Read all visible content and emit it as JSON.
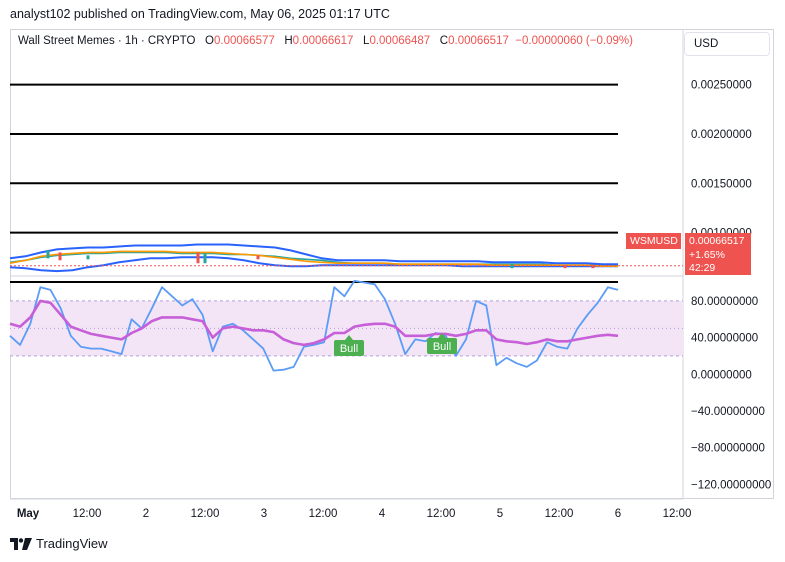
{
  "header": {
    "published": "analyst102 published on TradingView.com, May 06, 2025 01:17 UTC"
  },
  "legend": {
    "symbol": "Wall Street Memes · 1h · CRYPTO",
    "o_label": "O",
    "o": "0.00066577",
    "h_label": "H",
    "h": "0.00066617",
    "l_label": "L",
    "l": "0.00066487",
    "c_label": "C",
    "c": "0.00066517",
    "change": "−0.00000060 (−0.09%)"
  },
  "currency_button": "USD",
  "price_tag": {
    "symbol": "WSMUSD",
    "price": "0.00066517",
    "change": "+1.65%",
    "countdown": "42:29"
  },
  "footer": {
    "brand": "TradingView"
  },
  "colors": {
    "up": "#26a69a",
    "down": "#ef5350",
    "bollinger": "#2962ff",
    "ma": "#ff9800",
    "stoch_k": "#5b9cf6",
    "stoch_d": "#c65fd8",
    "band_fill": "#f3e5f5",
    "bull_label": "#4caf50"
  },
  "chart_data": [
    {
      "type": "line",
      "title": "Wall Street Memes · 1h · CRYPTO",
      "y_axis_labels": [
        "0.00250000",
        "0.00200000",
        "0.00150000",
        "0.00100000"
      ],
      "ylim": [
        0.0005,
        0.0028
      ],
      "horizontal_lines": [
        0.0025,
        0.002,
        0.0015,
        0.001,
        0.0005
      ],
      "x_labels": [
        "May",
        "12:00",
        "2",
        "12:00",
        "3",
        "12:00",
        "4",
        "12:00",
        "5",
        "12:00",
        "6",
        "12:00"
      ],
      "series": [
        {
          "values": [
            0.0007,
            0.00072,
            0.00075,
            0.00077,
            0.00078,
            0.00079,
            0.00079,
            0.0008,
            0.0008,
            0.0008,
            0.0008,
            0.00079,
            0.00079,
            0.00079,
            0.00078,
            0.00078,
            0.00077,
            0.00076,
            0.00074,
            0.00073,
            0.00072,
            0.0007,
            0.00069,
            0.00069,
            0.00069,
            0.00068,
            0.00068,
            0.00068,
            0.00068,
            0.00068,
            0.00068,
            0.00068,
            0.00068,
            0.00068,
            0.00068,
            0.00067,
            0.00067,
            0.00067,
            0.00067,
            0.00067
          ]
        },
        {
          "values": [
            0.00074,
            0.00076,
            0.0008,
            0.00083,
            0.00084,
            0.00085,
            0.00085,
            0.00086,
            0.00087,
            0.00087,
            0.00087,
            0.00087,
            0.00088,
            0.00088,
            0.00088,
            0.00087,
            0.00086,
            0.00085,
            0.00082,
            0.00078,
            0.00074,
            0.00072,
            0.00072,
            0.00072,
            0.00072,
            0.00071,
            0.00071,
            0.00071,
            0.00071,
            0.00071,
            0.00071,
            0.0007,
            0.0007,
            0.0007,
            0.0007,
            0.00069,
            0.00069,
            0.00069,
            0.00068,
            0.00068
          ]
        },
        {
          "values": [
            0.00065,
            0.00064,
            0.00062,
            0.00061,
            0.00062,
            0.00065,
            0.00067,
            0.0007,
            0.00072,
            0.00074,
            0.00074,
            0.00075,
            0.00075,
            0.00075,
            0.00074,
            0.00072,
            0.00069,
            0.00067,
            0.00066,
            0.00066,
            0.00067,
            0.00067,
            0.00067,
            0.00067,
            0.00067,
            0.00067,
            0.00067,
            0.00067,
            0.00067,
            0.00066,
            0.00066,
            0.00066,
            0.00066,
            0.00066,
            0.00066,
            0.00066,
            0.00066,
            0.00066,
            0.00066,
            0.00066
          ]
        },
        {
          "values": [
            0.00069,
            0.00072,
            0.00076,
            0.00078,
            0.00079,
            0.0008,
            0.0008,
            0.00081,
            0.00081,
            0.00081,
            0.00081,
            0.0008,
            0.0008,
            0.0008,
            0.00079,
            0.00078,
            0.00077,
            0.00075,
            0.00073,
            0.00071,
            0.0007,
            0.00069,
            0.00069,
            0.00069,
            0.00069,
            0.00068,
            0.00068,
            0.00068,
            0.00068,
            0.00068,
            0.00068,
            0.00067,
            0.00067,
            0.00067,
            0.00067,
            0.00067,
            0.00067,
            0.00067,
            0.00066,
            0.00066
          ]
        }
      ]
    },
    {
      "type": "line",
      "y_axis_labels": [
        "80.00000000",
        "40.00000000",
        "0.00000000",
        "−40.00000000",
        "−80.00000000",
        "−120.00000000"
      ],
      "ylim": [
        -135,
        105
      ],
      "bands": [
        20,
        80
      ],
      "series": [
        {
          "values": [
            42,
            32,
            55,
            95,
            92,
            72,
            42,
            30,
            28,
            28,
            25,
            22,
            60,
            50,
            72,
            95,
            85,
            75,
            82,
            65,
            25,
            52,
            55,
            48,
            38,
            28,
            4,
            5,
            8,
            30,
            32,
            35,
            95,
            85,
            102,
            100,
            98,
            82,
            55,
            22,
            38,
            36,
            45,
            42,
            20,
            38,
            80,
            75,
            10,
            18,
            12,
            8,
            15,
            35,
            30,
            28,
            50,
            65,
            78,
            95,
            92
          ]
        },
        {
          "values": [
            55,
            52,
            62,
            80,
            78,
            65,
            52,
            48,
            44,
            42,
            40,
            38,
            45,
            50,
            58,
            62,
            62,
            62,
            60,
            58,
            40,
            50,
            52,
            50,
            48,
            48,
            46,
            38,
            34,
            32,
            34,
            38,
            45,
            45,
            52,
            54,
            55,
            55,
            52,
            42,
            42,
            42,
            44,
            44,
            42,
            44,
            48,
            48,
            38,
            36,
            35,
            33,
            35,
            38,
            36,
            36,
            38,
            40,
            42,
            43,
            42
          ]
        }
      ],
      "annotations": [
        "Bull",
        "Bull"
      ]
    }
  ]
}
